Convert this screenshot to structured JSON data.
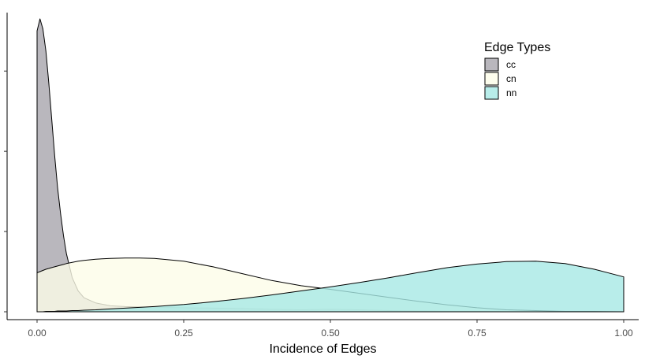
{
  "chart_data": {
    "type": "area",
    "title": "",
    "xlabel": "Incidence of Edges",
    "ylabel": "",
    "xlim": [
      0,
      1
    ],
    "ylim": [
      0,
      7.3
    ],
    "x_ticks": [
      0,
      0.25,
      0.5,
      0.75,
      1.0
    ],
    "x_tick_labels": [
      "0.00",
      "0.25",
      "0.50",
      "0.75",
      "1.00"
    ],
    "y_ticks": [
      0,
      2,
      4,
      6
    ],
    "y_tick_labels": [
      "",
      "",
      "",
      ""
    ],
    "grid": false,
    "legend": {
      "title": "Edge Types",
      "position": "top-right"
    },
    "x": [
      0,
      0.005,
      0.01,
      0.015,
      0.02,
      0.025,
      0.03,
      0.035,
      0.04,
      0.045,
      0.05,
      0.06,
      0.07,
      0.08,
      0.1,
      0.125,
      0.15,
      0.175,
      0.2,
      0.25,
      0.3,
      0.35,
      0.4,
      0.45,
      0.5,
      0.55,
      0.6,
      0.65,
      0.7,
      0.75,
      0.8,
      0.85,
      0.9,
      0.95,
      1.0
    ],
    "series": [
      {
        "name": "cc",
        "color": "#a7a5ad",
        "values": [
          7.0,
          7.3,
          7.05,
          6.5,
          5.7,
          4.8,
          3.9,
          3.1,
          2.45,
          1.9,
          1.45,
          0.85,
          0.52,
          0.35,
          0.22,
          0.15,
          0.13,
          0.12,
          0.11,
          0.1,
          0.09,
          0.08,
          0.06,
          0.05,
          0.06,
          0.05,
          0.03,
          0.02,
          0.01,
          0.01,
          0.0,
          0.0,
          0.0,
          0.0,
          0.0
        ]
      },
      {
        "name": "cn",
        "color": "#fcfde8",
        "values": [
          0.97,
          1.0,
          1.03,
          1.06,
          1.08,
          1.1,
          1.12,
          1.14,
          1.16,
          1.18,
          1.2,
          1.23,
          1.26,
          1.28,
          1.31,
          1.33,
          1.34,
          1.34,
          1.33,
          1.26,
          1.12,
          0.95,
          0.78,
          0.65,
          0.56,
          0.46,
          0.36,
          0.26,
          0.17,
          0.1,
          0.05,
          0.03,
          0.01,
          0.01,
          0.0
        ]
      },
      {
        "name": "nn",
        "color": "#a6e8e5",
        "values": [
          0.0,
          0.0,
          0.0,
          0.01,
          0.01,
          0.01,
          0.01,
          0.02,
          0.02,
          0.02,
          0.02,
          0.03,
          0.03,
          0.04,
          0.05,
          0.07,
          0.09,
          0.11,
          0.13,
          0.18,
          0.25,
          0.33,
          0.42,
          0.52,
          0.62,
          0.73,
          0.85,
          0.98,
          1.1,
          1.19,
          1.25,
          1.26,
          1.2,
          1.06,
          0.87
        ]
      }
    ]
  }
}
